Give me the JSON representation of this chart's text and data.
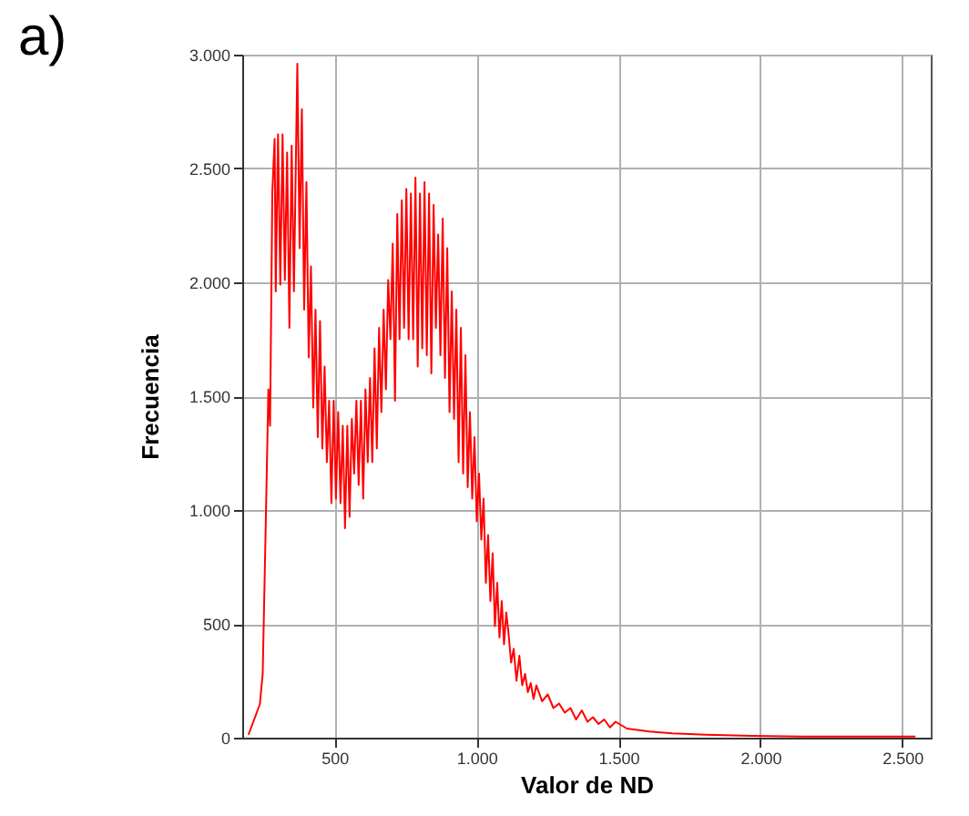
{
  "chart_data": {
    "type": "line",
    "title": "a)",
    "xlabel": "Valor de ND",
    "ylabel": "Frecuencia",
    "xlim": [
      175,
      2600
    ],
    "ylim": [
      0,
      3000
    ],
    "xticks": [
      {
        "value": 500,
        "label": "500"
      },
      {
        "value": 1000,
        "label": "1.000"
      },
      {
        "value": 1500,
        "label": "1.500"
      },
      {
        "value": 2000,
        "label": "2.000"
      },
      {
        "value": 2500,
        "label": "2.500"
      }
    ],
    "yticks": [
      0,
      500,
      {
        "value": 1000,
        "label": "1.000"
      },
      {
        "value": 1500,
        "label": "1.500"
      },
      {
        "value": 2000,
        "label": "2.000"
      },
      {
        "value": 2500,
        "label": "2.500"
      },
      {
        "value": 3000,
        "label": "3.000"
      }
    ],
    "grid": true,
    "marker": "none",
    "line_style": "solid",
    "x": [
      197,
      217,
      237,
      247,
      257,
      267,
      273,
      281,
      289,
      293,
      301,
      309,
      317,
      325,
      333,
      341,
      349,
      357,
      369,
      377,
      385,
      393,
      401,
      409,
      417,
      425,
      433,
      441,
      449,
      457,
      465,
      473,
      481,
      489,
      497,
      505,
      513,
      521,
      529,
      537,
      545,
      553,
      561,
      569,
      577,
      585,
      593,
      601,
      609,
      617,
      625,
      633,
      641,
      649,
      657,
      665,
      673,
      681,
      689,
      697,
      705,
      713,
      721,
      729,
      737,
      745,
      753,
      761,
      769,
      777,
      785,
      793,
      801,
      809,
      817,
      825,
      833,
      841,
      849,
      857,
      865,
      873,
      881,
      889,
      897,
      905,
      913,
      921,
      929,
      937,
      945,
      953,
      961,
      969,
      977,
      985,
      993,
      1001,
      1009,
      1017,
      1025,
      1033,
      1041,
      1049,
      1057,
      1065,
      1073,
      1081,
      1089,
      1097,
      1105,
      1112,
      1122,
      1131,
      1141,
      1151,
      1161,
      1171,
      1181,
      1191,
      1201,
      1211,
      1231,
      1251,
      1271,
      1291,
      1311,
      1331,
      1351,
      1371,
      1391,
      1410,
      1430,
      1450,
      1470,
      1490,
      1530,
      1610,
      1689,
      1809,
      1968,
      2147,
      2347,
      2546
    ],
    "series": [
      {
        "color": "#ff0000",
        "values": [
          13,
          80,
          147,
          280,
          890,
          1530,
          1370,
          2400,
          2630,
          1960,
          2650,
          1990,
          2650,
          2010,
          2570,
          1800,
          2600,
          1960,
          2960,
          2150,
          2760,
          1880,
          2440,
          1670,
          2070,
          1450,
          1880,
          1320,
          1830,
          1270,
          1630,
          1210,
          1480,
          1030,
          1480,
          1050,
          1430,
          1030,
          1370,
          920,
          1370,
          970,
          1400,
          1160,
          1480,
          1110,
          1480,
          1050,
          1530,
          1210,
          1580,
          1210,
          1710,
          1270,
          1800,
          1430,
          1880,
          1530,
          2010,
          1750,
          2170,
          1480,
          2300,
          1750,
          2360,
          1800,
          2410,
          1750,
          2390,
          1750,
          2460,
          1630,
          2390,
          1710,
          2440,
          1680,
          2390,
          1600,
          2340,
          1800,
          2210,
          1680,
          2280,
          1580,
          2150,
          1430,
          1960,
          1400,
          1880,
          1210,
          1800,
          1160,
          1680,
          1100,
          1430,
          1050,
          1320,
          950,
          1160,
          870,
          1050,
          680,
          890,
          600,
          810,
          490,
          680,
          440,
          600,
          410,
          550,
          470,
          330,
          390,
          250,
          360,
          230,
          280,
          200,
          240,
          170,
          230,
          160,
          190,
          130,
          150,
          110,
          130,
          80,
          120,
          70,
          90,
          60,
          80,
          45,
          70,
          40,
          27,
          19,
          13,
          8,
          5,
          5,
          5
        ]
      }
    ]
  }
}
